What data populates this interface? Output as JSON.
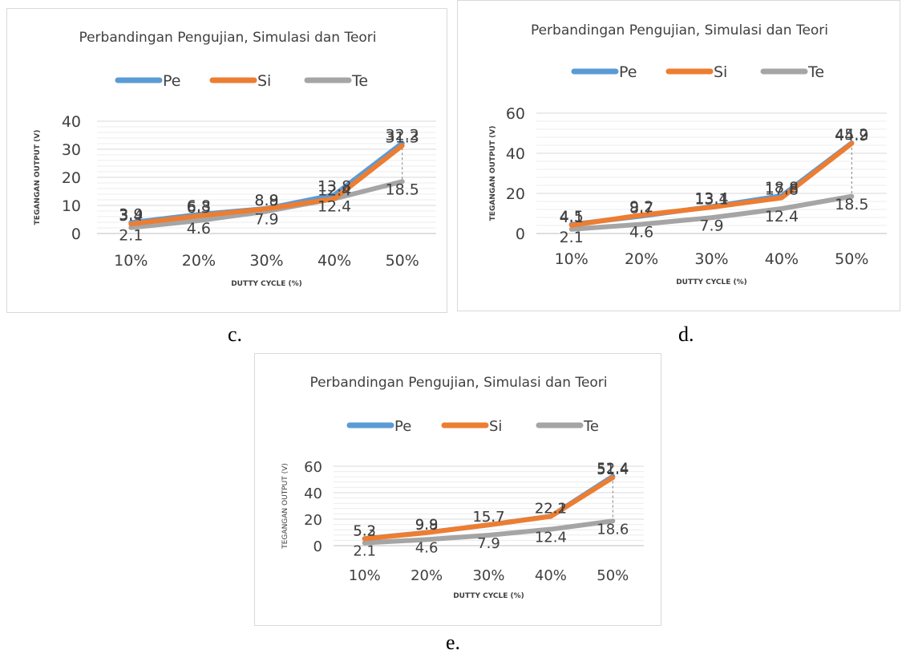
{
  "captions": [
    "c.",
    "d.",
    "e."
  ],
  "chart_data": [
    {
      "type": "line",
      "title": "Perbandingan Pengujian, Simulasi dan Teori",
      "xlabel": "DUTTY CYCLE (%)",
      "ylabel": "TEGANGAN OUTPUT (V)",
      "categories": [
        "10%",
        "20%",
        "30%",
        "40%",
        "50%"
      ],
      "ylim": [
        0,
        40
      ],
      "yticks": [
        0,
        10,
        20,
        30,
        40
      ],
      "grid": true,
      "legend": "top",
      "series": [
        {
          "name": "Pe",
          "color": "#5b9bd5",
          "values": [
            3.9,
            6.8,
            8.9,
            13.8,
            32.2
          ],
          "labels": [
            "3.9",
            "6.8",
            "8.9",
            "13.8",
            "32.2"
          ]
        },
        {
          "name": "Si",
          "color": "#ed7d31",
          "values": [
            3.4,
            6.3,
            8.8,
            12.4,
            31.3
          ],
          "labels": [
            "3.4",
            "6.3",
            "8.8",
            "12.4",
            "31.3"
          ]
        },
        {
          "name": "Te",
          "color": "#a5a5a5",
          "values": [
            2.1,
            4.6,
            7.9,
            12.4,
            18.5
          ],
          "labels": [
            "2.1",
            "4.6",
            "7.9",
            "12.4",
            "18.5"
          ]
        }
      ]
    },
    {
      "type": "line",
      "title": "Perbandingan Pengujian, Simulasi dan Teori",
      "xlabel": "DUTTY CYCLE (%)",
      "ylabel": "TEGANGAN OUTPUT (V)",
      "categories": [
        "10%",
        "20%",
        "30%",
        "40%",
        "50%"
      ],
      "ylim": [
        0,
        60
      ],
      "yticks": [
        0,
        20,
        40,
        60
      ],
      "grid": true,
      "legend": "top",
      "series": [
        {
          "name": "Pe",
          "color": "#5b9bd5",
          "values": [
            4.5,
            8.7,
            13.4,
            18.8,
            45.2
          ],
          "labels": [
            "4.5",
            "8.7",
            "13.4",
            "18.8",
            "45.2"
          ]
        },
        {
          "name": "Si",
          "color": "#ed7d31",
          "values": [
            4.1,
            9.2,
            13.1,
            17.8,
            44.9
          ],
          "labels": [
            "4.1",
            "9.2",
            "13.1",
            "17.8",
            "44.9"
          ]
        },
        {
          "name": "Te",
          "color": "#a5a5a5",
          "values": [
            2.1,
            4.6,
            7.9,
            12.4,
            18.5
          ],
          "labels": [
            "2.1",
            "4.6",
            "7.9",
            "12.4",
            "18.5"
          ]
        }
      ]
    },
    {
      "type": "line",
      "title": "Perbandingan Pengujian, Simulasi dan Teori",
      "xlabel": "DUTTY CYCLE (%)",
      "ylabel": "TEGANGAN OUTPUT (V)",
      "categories": [
        "10%",
        "20%",
        "30%",
        "40%",
        "50%"
      ],
      "ylim": [
        0,
        60
      ],
      "yticks": [
        0,
        20,
        40,
        60
      ],
      "grid": true,
      "legend": "top",
      "series": [
        {
          "name": "Pe",
          "color": "#5b9bd5",
          "values": [
            5.3,
            9.9,
            15.7,
            22.2,
            52.4
          ],
          "labels": [
            "5.3",
            "9.9",
            "15.7",
            "22.2",
            "52.4"
          ]
        },
        {
          "name": "Si",
          "color": "#ed7d31",
          "values": [
            5.2,
            9.8,
            15.7,
            22.1,
            51.4
          ],
          "labels": [
            "5.2",
            "9.8",
            "15.7",
            "22.1",
            "51.4"
          ]
        },
        {
          "name": "Te",
          "color": "#a5a5a5",
          "values": [
            2.1,
            4.6,
            7.9,
            12.4,
            18.6
          ],
          "labels": [
            "2.1",
            "4.6",
            "7.9",
            "12.4",
            "18.6"
          ]
        }
      ]
    }
  ]
}
